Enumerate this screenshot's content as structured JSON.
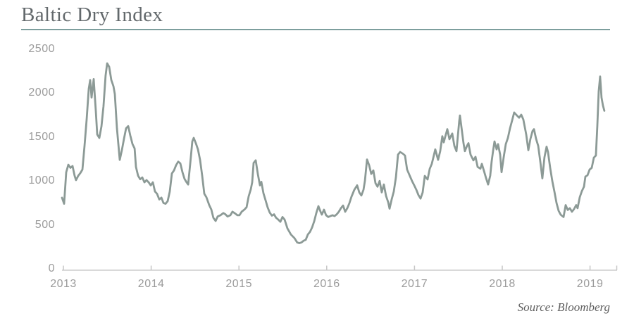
{
  "title": "Baltic Dry Index",
  "source": "Source: Bloomberg",
  "colors": {
    "line": "#8c9a96",
    "title_rule": "#7d9e9d",
    "title_text": "#63696c",
    "axis_text": "#9b9b9b",
    "axis_line": "#d9d9d9",
    "tick": "#c6c6c6"
  },
  "chart_data": {
    "type": "line",
    "title": "Baltic Dry Index",
    "xlabel": "",
    "ylabel": "",
    "grid": false,
    "legend": "none",
    "x_axis": {
      "tick_labels": [
        "2013",
        "2014",
        "2015",
        "2016",
        "2017",
        "2018",
        "2019"
      ],
      "tick_values": [
        2013,
        2014,
        2015,
        2016,
        2017,
        2018,
        2019
      ],
      "range": [
        2012.98,
        2019.3
      ]
    },
    "y_axis": {
      "tick_labels": [
        "0",
        "500",
        "1000",
        "1500",
        "2000",
        "2500"
      ],
      "tick_values": [
        0,
        500,
        1000,
        1500,
        2000,
        2500
      ],
      "range": [
        0,
        2500
      ]
    },
    "series": [
      {
        "name": "Baltic Dry Index",
        "points": [
          [
            2012.984,
            810
          ],
          [
            2013.008,
            740
          ],
          [
            2013.032,
            1100
          ],
          [
            2013.056,
            1185
          ],
          [
            2013.08,
            1150
          ],
          [
            2013.104,
            1170
          ],
          [
            2013.128,
            1060
          ],
          [
            2013.144,
            1010
          ],
          [
            2013.169,
            1060
          ],
          [
            2013.193,
            1090
          ],
          [
            2013.217,
            1130
          ],
          [
            2013.241,
            1400
          ],
          [
            2013.265,
            1700
          ],
          [
            2013.289,
            2050
          ],
          [
            2013.305,
            2150
          ],
          [
            2013.321,
            1950
          ],
          [
            2013.345,
            2160
          ],
          [
            2013.369,
            1800
          ],
          [
            2013.385,
            1530
          ],
          [
            2013.409,
            1490
          ],
          [
            2013.433,
            1620
          ],
          [
            2013.457,
            1850
          ],
          [
            2013.481,
            2200
          ],
          [
            2013.498,
            2340
          ],
          [
            2013.522,
            2300
          ],
          [
            2013.546,
            2150
          ],
          [
            2013.57,
            2080
          ],
          [
            2013.586,
            1990
          ],
          [
            2013.61,
            1600
          ],
          [
            2013.626,
            1420
          ],
          [
            2013.642,
            1240
          ],
          [
            2013.666,
            1350
          ],
          [
            2013.69,
            1480
          ],
          [
            2013.714,
            1600
          ],
          [
            2013.738,
            1625
          ],
          [
            2013.762,
            1520
          ],
          [
            2013.787,
            1420
          ],
          [
            2013.811,
            1370
          ],
          [
            2013.827,
            1160
          ],
          [
            2013.851,
            1060
          ],
          [
            2013.875,
            1020
          ],
          [
            2013.899,
            1040
          ],
          [
            2013.923,
            985
          ],
          [
            2013.947,
            1010
          ],
          [
            2013.971,
            985
          ],
          [
            2013.995,
            950
          ],
          [
            2014.019,
            985
          ],
          [
            2014.043,
            880
          ],
          [
            2014.067,
            855
          ],
          [
            2014.092,
            790
          ],
          [
            2014.116,
            810
          ],
          [
            2014.14,
            750
          ],
          [
            2014.164,
            740
          ],
          [
            2014.188,
            770
          ],
          [
            2014.212,
            880
          ],
          [
            2014.236,
            1085
          ],
          [
            2014.26,
            1120
          ],
          [
            2014.284,
            1180
          ],
          [
            2014.308,
            1220
          ],
          [
            2014.332,
            1200
          ],
          [
            2014.356,
            1100
          ],
          [
            2014.38,
            1025
          ],
          [
            2014.404,
            985
          ],
          [
            2014.421,
            960
          ],
          [
            2014.445,
            1195
          ],
          [
            2014.469,
            1450
          ],
          [
            2014.485,
            1490
          ],
          [
            2014.509,
            1430
          ],
          [
            2014.533,
            1360
          ],
          [
            2014.557,
            1240
          ],
          [
            2014.581,
            1060
          ],
          [
            2014.605,
            855
          ],
          [
            2014.629,
            815
          ],
          [
            2014.661,
            725
          ],
          [
            2014.685,
            675
          ],
          [
            2014.709,
            580
          ],
          [
            2014.734,
            545
          ],
          [
            2014.758,
            595
          ],
          [
            2014.79,
            610
          ],
          [
            2014.822,
            635
          ],
          [
            2014.846,
            620
          ],
          [
            2014.87,
            595
          ],
          [
            2014.902,
            610
          ],
          [
            2014.926,
            650
          ],
          [
            2014.95,
            635
          ],
          [
            2014.982,
            610
          ],
          [
            2015.006,
            610
          ],
          [
            2015.031,
            650
          ],
          [
            2015.063,
            675
          ],
          [
            2015.087,
            700
          ],
          [
            2015.111,
            825
          ],
          [
            2015.135,
            905
          ],
          [
            2015.151,
            985
          ],
          [
            2015.167,
            1205
          ],
          [
            2015.191,
            1235
          ],
          [
            2015.215,
            1080
          ],
          [
            2015.239,
            950
          ],
          [
            2015.255,
            990
          ],
          [
            2015.279,
            860
          ],
          [
            2015.303,
            780
          ],
          [
            2015.327,
            700
          ],
          [
            2015.351,
            640
          ],
          [
            2015.376,
            605
          ],
          [
            2015.4,
            620
          ],
          [
            2015.424,
            580
          ],
          [
            2015.448,
            560
          ],
          [
            2015.472,
            535
          ],
          [
            2015.496,
            590
          ],
          [
            2015.52,
            560
          ],
          [
            2015.552,
            460
          ],
          [
            2015.592,
            390
          ],
          [
            2015.632,
            350
          ],
          [
            2015.664,
            300
          ],
          [
            2015.688,
            292
          ],
          [
            2015.712,
            300
          ],
          [
            2015.737,
            320
          ],
          [
            2015.761,
            330
          ],
          [
            2015.785,
            390
          ],
          [
            2015.809,
            420
          ],
          [
            2015.833,
            470
          ],
          [
            2015.857,
            540
          ],
          [
            2015.881,
            635
          ],
          [
            2015.905,
            713
          ],
          [
            2015.929,
            650
          ],
          [
            2015.945,
            617
          ],
          [
            2015.969,
            673
          ],
          [
            2015.993,
            610
          ],
          [
            2016.018,
            590
          ],
          [
            2016.042,
            600
          ],
          [
            2016.066,
            610
          ],
          [
            2016.09,
            600
          ],
          [
            2016.114,
            620
          ],
          [
            2016.138,
            650
          ],
          [
            2016.162,
            690
          ],
          [
            2016.186,
            720
          ],
          [
            2016.21,
            650
          ],
          [
            2016.234,
            690
          ],
          [
            2016.258,
            745
          ],
          [
            2016.282,
            820
          ],
          [
            2016.315,
            900
          ],
          [
            2016.347,
            950
          ],
          [
            2016.371,
            870
          ],
          [
            2016.395,
            835
          ],
          [
            2016.419,
            900
          ],
          [
            2016.435,
            1000
          ],
          [
            2016.459,
            1245
          ],
          [
            2016.483,
            1180
          ],
          [
            2016.507,
            1080
          ],
          [
            2016.531,
            1120
          ],
          [
            2016.555,
            975
          ],
          [
            2016.579,
            935
          ],
          [
            2016.603,
            1000
          ],
          [
            2016.627,
            870
          ],
          [
            2016.651,
            960
          ],
          [
            2016.676,
            830
          ],
          [
            2016.7,
            760
          ],
          [
            2016.716,
            685
          ],
          [
            2016.74,
            790
          ],
          [
            2016.764,
            880
          ],
          [
            2016.788,
            1040
          ],
          [
            2016.812,
            1300
          ],
          [
            2016.836,
            1330
          ],
          [
            2016.868,
            1310
          ],
          [
            2016.892,
            1290
          ],
          [
            2016.916,
            1130
          ],
          [
            2016.948,
            1055
          ],
          [
            2016.972,
            1000
          ],
          [
            2016.997,
            950
          ],
          [
            2017.021,
            900
          ],
          [
            2017.045,
            840
          ],
          [
            2017.069,
            800
          ],
          [
            2017.093,
            870
          ],
          [
            2017.117,
            1058
          ],
          [
            2017.149,
            1018
          ],
          [
            2017.173,
            1138
          ],
          [
            2017.197,
            1194
          ],
          [
            2017.213,
            1258
          ],
          [
            2017.237,
            1360
          ],
          [
            2017.269,
            1240
          ],
          [
            2017.293,
            1340
          ],
          [
            2017.317,
            1510
          ],
          [
            2017.333,
            1440
          ],
          [
            2017.349,
            1500
          ],
          [
            2017.374,
            1590
          ],
          [
            2017.398,
            1475
          ],
          [
            2017.43,
            1540
          ],
          [
            2017.454,
            1400
          ],
          [
            2017.478,
            1340
          ],
          [
            2017.51,
            1680
          ],
          [
            2017.518,
            1745
          ],
          [
            2017.542,
            1560
          ],
          [
            2017.558,
            1434
          ],
          [
            2017.574,
            1340
          ],
          [
            2017.598,
            1400
          ],
          [
            2017.615,
            1430
          ],
          [
            2017.639,
            1300
          ],
          [
            2017.671,
            1235
          ],
          [
            2017.695,
            1275
          ],
          [
            2017.719,
            1160
          ],
          [
            2017.751,
            1140
          ],
          [
            2017.767,
            1195
          ],
          [
            2017.791,
            1115
          ],
          [
            2017.815,
            1035
          ],
          [
            2017.839,
            960
          ],
          [
            2017.863,
            1060
          ],
          [
            2017.879,
            1220
          ],
          [
            2017.895,
            1340
          ],
          [
            2017.912,
            1450
          ],
          [
            2017.936,
            1360
          ],
          [
            2017.952,
            1420
          ],
          [
            2017.976,
            1300
          ],
          [
            2017.992,
            1100
          ],
          [
            2018.016,
            1270
          ],
          [
            2018.04,
            1420
          ],
          [
            2018.064,
            1490
          ],
          [
            2018.088,
            1600
          ],
          [
            2018.112,
            1690
          ],
          [
            2018.136,
            1780
          ],
          [
            2018.168,
            1745
          ],
          [
            2018.192,
            1720
          ],
          [
            2018.216,
            1755
          ],
          [
            2018.24,
            1700
          ],
          [
            2018.273,
            1530
          ],
          [
            2018.297,
            1350
          ],
          [
            2018.321,
            1480
          ],
          [
            2018.345,
            1570
          ],
          [
            2018.361,
            1590
          ],
          [
            2018.385,
            1480
          ],
          [
            2018.409,
            1400
          ],
          [
            2018.433,
            1220
          ],
          [
            2018.457,
            1030
          ],
          [
            2018.481,
            1270
          ],
          [
            2018.505,
            1390
          ],
          [
            2018.521,
            1330
          ],
          [
            2018.546,
            1150
          ],
          [
            2018.57,
            1000
          ],
          [
            2018.594,
            880
          ],
          [
            2018.618,
            750
          ],
          [
            2018.642,
            660
          ],
          [
            2018.666,
            615
          ],
          [
            2018.698,
            590
          ],
          [
            2018.722,
            725
          ],
          [
            2018.746,
            670
          ],
          [
            2018.77,
            690
          ],
          [
            2018.794,
            650
          ],
          [
            2018.818,
            680
          ],
          [
            2018.842,
            725
          ],
          [
            2018.858,
            690
          ],
          [
            2018.883,
            815
          ],
          [
            2018.907,
            885
          ],
          [
            2018.931,
            935
          ],
          [
            2018.947,
            1050
          ],
          [
            2018.971,
            1065
          ],
          [
            2018.995,
            1130
          ],
          [
            2019.019,
            1150
          ],
          [
            2019.043,
            1265
          ],
          [
            2019.067,
            1290
          ],
          [
            2019.083,
            1620
          ],
          [
            2019.099,
            2020
          ],
          [
            2019.115,
            2190
          ],
          [
            2019.131,
            1950
          ],
          [
            2019.147,
            1860
          ],
          [
            2019.163,
            1800
          ]
        ]
      }
    ]
  }
}
